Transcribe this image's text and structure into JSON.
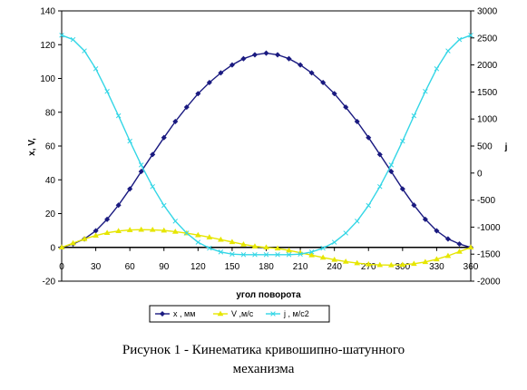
{
  "chart_data": {
    "type": "line",
    "xlabel": "угол поворота",
    "ylabel_left": "x, V,",
    "ylabel_right": "j",
    "x_ticks": [
      0,
      30,
      60,
      90,
      120,
      150,
      180,
      210,
      240,
      270,
      300,
      330,
      360
    ],
    "xlim": [
      0,
      360
    ],
    "ylim_left": [
      -20,
      140
    ],
    "yticks_left": [
      -20,
      0,
      20,
      40,
      60,
      80,
      100,
      120,
      140
    ],
    "ylim_right": [
      -2000,
      3000
    ],
    "yticks_right": [
      -2000,
      -1500,
      -1000,
      -500,
      0,
      500,
      1000,
      1500,
      2000,
      2500,
      3000
    ],
    "grid": false,
    "legend_position": "bottom",
    "x": [
      0,
      10,
      20,
      30,
      40,
      50,
      60,
      70,
      80,
      90,
      100,
      110,
      120,
      130,
      140,
      150,
      160,
      170,
      180,
      190,
      200,
      210,
      220,
      230,
      240,
      250,
      260,
      270,
      280,
      290,
      300,
      310,
      320,
      330,
      340,
      350,
      360
    ],
    "series": [
      {
        "name": "x , мм",
        "axis": "left",
        "color": "#1a1a80",
        "marker": "diamond",
        "values": [
          0,
          2,
          5,
          9.8,
          16.6,
          25,
          34.6,
          44.9,
          55,
          65,
          74.5,
          83,
          91,
          97.6,
          103.3,
          108,
          111.7,
          114,
          115,
          114,
          111.7,
          108,
          103.3,
          97.6,
          91,
          83,
          74.5,
          65,
          55,
          44.9,
          34.6,
          25,
          16.6,
          9.8,
          5,
          2,
          0
        ]
      },
      {
        "name": "V ,м/с",
        "axis": "left",
        "color": "#e6e600",
        "marker": "triangle",
        "values": [
          0,
          2.5,
          5,
          7,
          8.6,
          9.7,
          10.3,
          10.5,
          10.4,
          10,
          9.3,
          8.4,
          7.3,
          6,
          4.6,
          3.2,
          1.8,
          0.6,
          0,
          -0.6,
          -1.8,
          -3.2,
          -4.6,
          -6,
          -7.3,
          -8.4,
          -9.3,
          -10,
          -10.4,
          -10.5,
          -10.3,
          -9.7,
          -8.6,
          -7,
          -5,
          -2.5,
          0
        ]
      },
      {
        "name": "j , м/с2",
        "axis": "right",
        "color": "#33d6e6",
        "marker": "x",
        "values": [
          2550,
          2470,
          2260,
          1930,
          1510,
          1060,
          590,
          150,
          -250,
          -600,
          -890,
          -1110,
          -1280,
          -1390,
          -1460,
          -1500,
          -1510,
          -1510,
          -1510,
          -1510,
          -1510,
          -1500,
          -1460,
          -1390,
          -1280,
          -1110,
          -890,
          -600,
          -250,
          150,
          590,
          1060,
          1510,
          1930,
          2260,
          2470,
          2550
        ]
      }
    ]
  },
  "caption": {
    "line1": "Рисунок 1 -  Кинематика кривошипно-шатунного",
    "line2": "механизма"
  }
}
